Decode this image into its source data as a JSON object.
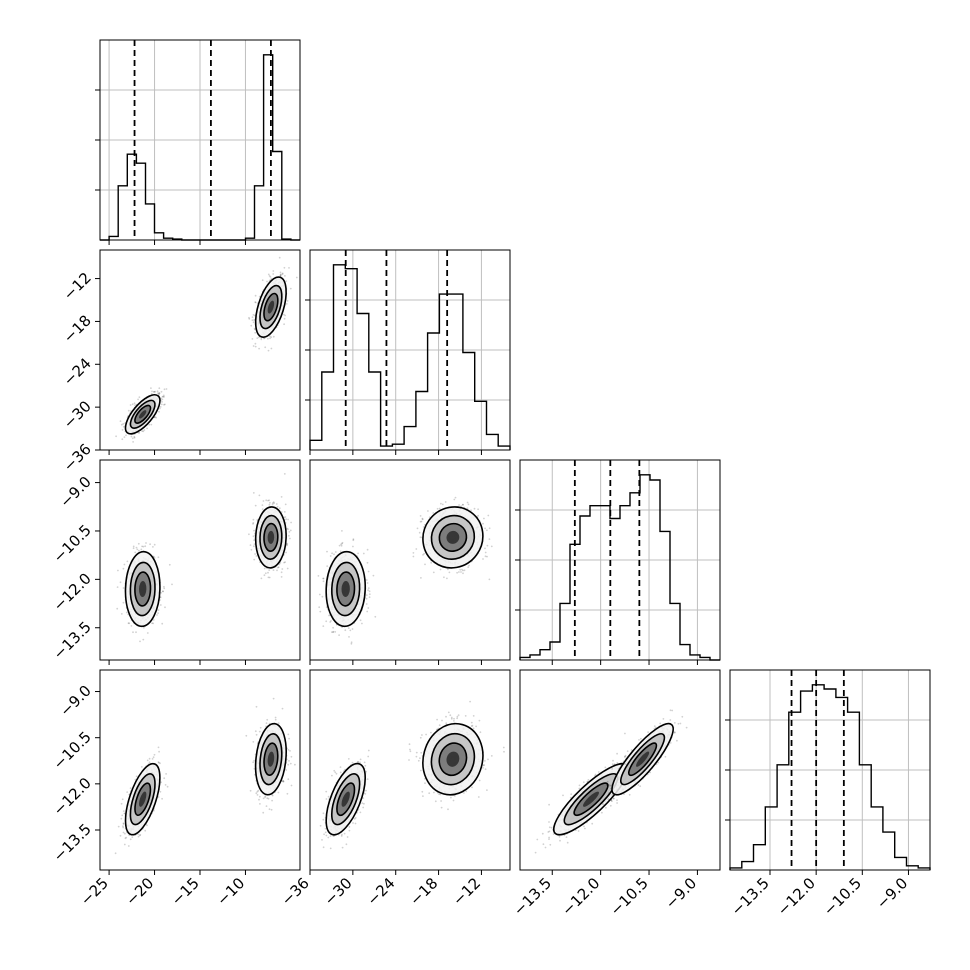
{
  "chart_data": {
    "type": "corner",
    "parameters": [
      "",
      "",
      "",
      ""
    ],
    "colors": {
      "line": "#000000",
      "grid": "#bfbfbf",
      "point": "#000000"
    },
    "ranges": [
      [
        -26,
        -4
      ],
      [
        -36,
        -8
      ],
      [
        -14.5,
        -8.3
      ],
      [
        -14.8,
        -8.3
      ]
    ],
    "ticks": [
      {
        "values": [
          -25,
          -20,
          -15,
          -10
        ],
        "labels": [
          "−25",
          "−20",
          "−15",
          "−10"
        ]
      },
      {
        "values": [
          -36,
          -30,
          -24,
          -18,
          -12
        ],
        "labels": [
          "−36",
          "−30",
          "−24",
          "−18",
          "−12"
        ]
      },
      {
        "values": [
          -13.5,
          -12.0,
          -10.5,
          -9.0
        ],
        "labels": [
          "−13.5",
          "−12.0",
          "−10.5",
          "−9.0"
        ]
      },
      {
        "values": [
          -13.5,
          -12.0,
          -10.5,
          -9.0
        ],
        "labels": [
          "−13.5",
          "−12.0",
          "−10.5",
          "−9.0"
        ]
      }
    ],
    "quantiles": [
      [
        -22.2,
        -13.8,
        -7.2
      ],
      [
        -31.0,
        -25.3,
        -16.8
      ],
      [
        -12.8,
        -11.7,
        -10.8
      ],
      [
        -12.8,
        -12.0,
        -11.1
      ]
    ],
    "histograms": [
      [
        0,
        4,
        60,
        95,
        85,
        40,
        8,
        2,
        1,
        0,
        0,
        0,
        0,
        0,
        0,
        0,
        2,
        60,
        205,
        98,
        1,
        0
      ],
      [
        5,
        40,
        95,
        93,
        70,
        40,
        2,
        3,
        12,
        30,
        60,
        80,
        80,
        50,
        25,
        8,
        2
      ],
      [
        1,
        2,
        4,
        7,
        22,
        45,
        56,
        60,
        60,
        55,
        60,
        65,
        72,
        70,
        50,
        22,
        6,
        2,
        1,
        0
      ],
      [
        1,
        4,
        12,
        30,
        50,
        75,
        85,
        88,
        86,
        82,
        75,
        50,
        30,
        18,
        6,
        2,
        1
      ]
    ],
    "clusters": [
      {
        "mean": [
          -21.3,
          -31.0,
          -12.3,
          -12.5
        ],
        "sd": [
          0.9,
          1.3,
          0.55,
          0.55
        ],
        "corr": [
          [
            1,
            0.7,
            0.05,
            0.6
          ],
          [
            0.7,
            1,
            0.05,
            0.6
          ],
          [
            0.05,
            0.05,
            1,
            0.85
          ],
          [
            0.6,
            0.6,
            0.85,
            1
          ]
        ]
      },
      {
        "mean": [
          -7.2,
          -16.0,
          -10.7,
          -11.2
        ],
        "sd": [
          0.8,
          2.0,
          0.45,
          0.55
        ],
        "corr": [
          [
            1,
            0.5,
            0.05,
            0.2
          ],
          [
            0.5,
            1,
            0.05,
            0.1
          ],
          [
            0.05,
            0.05,
            1,
            0.85
          ],
          [
            0.2,
            0.1,
            0.85,
            1
          ]
        ]
      }
    ]
  }
}
